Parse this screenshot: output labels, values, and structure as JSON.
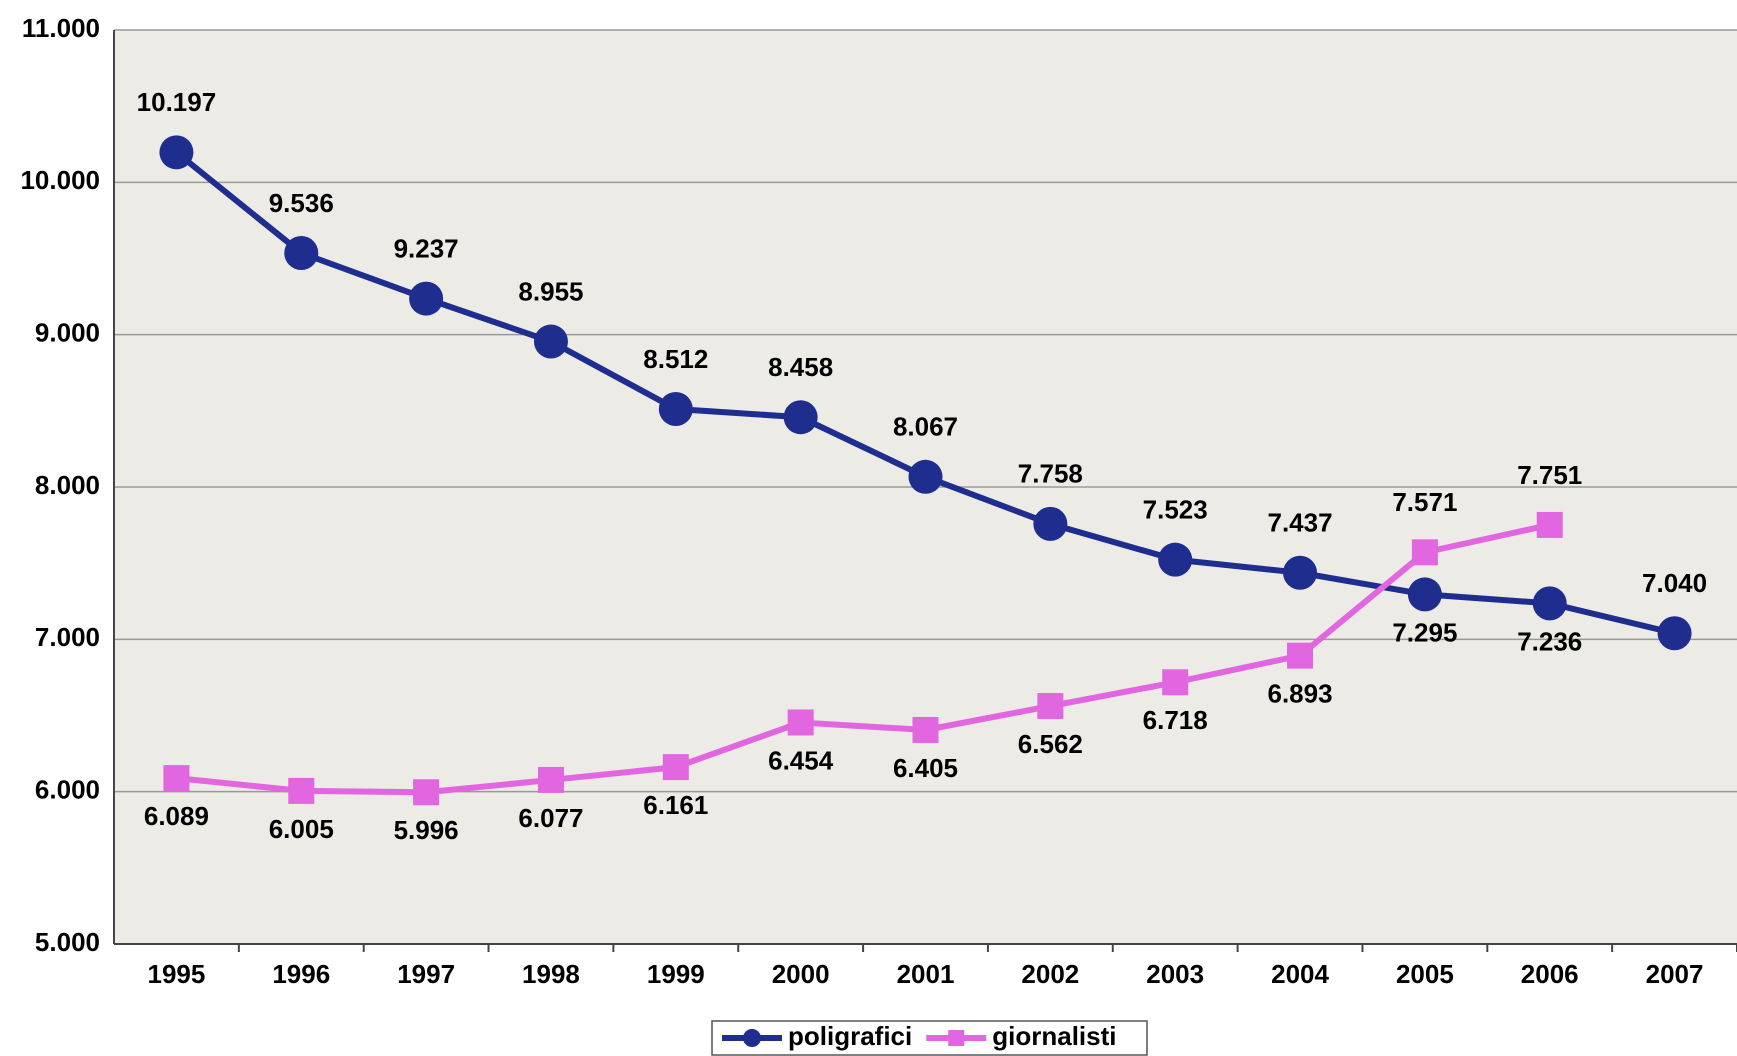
{
  "chart_data": {
    "type": "line",
    "categories": [
      "1995",
      "1996",
      "1997",
      "1998",
      "1999",
      "2000",
      "2001",
      "2002",
      "2003",
      "2004",
      "2005",
      "2006",
      "2007"
    ],
    "series": [
      {
        "name": "poligrafici",
        "color": "#1f2d8f",
        "values": [
          10197,
          9536,
          9237,
          8955,
          8512,
          8458,
          8067,
          7758,
          7523,
          7437,
          7295,
          7236,
          7040
        ],
        "value_labels": [
          "10.197",
          "9.536",
          "9.237",
          "8.955",
          "8.512",
          "8.458",
          "8.067",
          "7.758",
          "7.523",
          "7.437",
          "7.295",
          "7.236",
          "7.040"
        ]
      },
      {
        "name": "giornalisti",
        "color": "#e266e0",
        "values": [
          6089,
          6005,
          5996,
          6077,
          6161,
          6454,
          6405,
          6562,
          6718,
          6893,
          7571,
          7751,
          null
        ],
        "value_labels": [
          "6.089",
          "6.005",
          "5.996",
          "6.077",
          "6.161",
          "6.454",
          "6.405",
          "6.562",
          "6.718",
          "6.893",
          "7.571",
          "7.751",
          null
        ]
      }
    ],
    "ylim": [
      5000,
      11000
    ],
    "yticks": [
      {
        "value": 5000,
        "label": "5.000"
      },
      {
        "value": 6000,
        "label": "6.000"
      },
      {
        "value": 7000,
        "label": "7.000"
      },
      {
        "value": 8000,
        "label": "8.000"
      },
      {
        "value": 9000,
        "label": "9.000"
      },
      {
        "value": 10000,
        "label": "10.000"
      },
      {
        "value": 11000,
        "label": "11.000"
      }
    ],
    "grid": true,
    "legend": "bottom"
  }
}
